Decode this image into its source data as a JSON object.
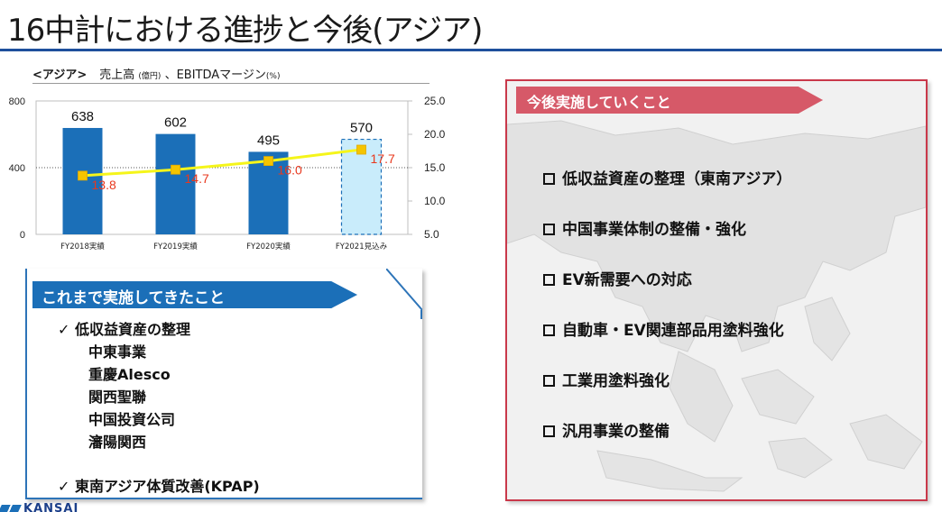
{
  "page": {
    "title": "16中計における進捗と今後(アジア)"
  },
  "chart_header": {
    "region": "<アジア>",
    "sales": "売上高",
    "sales_unit": "(億円)",
    "separator": "、EBITDAマージン",
    "margin_unit": "(%)"
  },
  "chart_data": {
    "type": "bar",
    "categories": [
      "FY2018実績",
      "FY2019実績",
      "FY2020実績",
      "FY2021見込み"
    ],
    "series": [
      {
        "values": [
          638,
          602,
          495,
          570
        ],
        "axis": "left",
        "style": "bar",
        "forecast_last": true
      },
      {
        "values": [
          13.8,
          14.7,
          16.0,
          17.7
        ],
        "axis": "right",
        "style": "line"
      }
    ],
    "y_left": {
      "lim": [
        0,
        800
      ],
      "ticks": [
        0,
        400,
        800
      ]
    },
    "y_right": {
      "lim": [
        5.0,
        25.0
      ],
      "ticks": [
        5.0,
        10.0,
        15.0,
        20.0,
        25.0
      ]
    },
    "colors": {
      "bar": "#1b6fb8",
      "forecast_bar": "#c9ecfb",
      "forecast_border": "#1b6fb8",
      "line": "#f5f51a",
      "marker": "#f5c400",
      "line_label": "#e8381e"
    },
    "grid": true
  },
  "past": {
    "header": "これまで実施してきたこと",
    "item1": "✓ 低収益資産の整理",
    "subitems": [
      "中東事業",
      "重慶Alesco",
      "関西聖聯",
      "中国投資公司",
      "瀋陽関西"
    ],
    "item2": "✓ 東南アジア体質改善(KPAP)"
  },
  "future": {
    "header": "今後実施していくこと",
    "items": [
      "低収益資産の整理（東南アジア）",
      "中国事業体制の整備・強化",
      "EV新需要への対応",
      "自動車・EV関連部品用塗料強化",
      "工業用塗料強化",
      "汎用事業の整備"
    ]
  },
  "logo": {
    "text": "KANSAI"
  }
}
